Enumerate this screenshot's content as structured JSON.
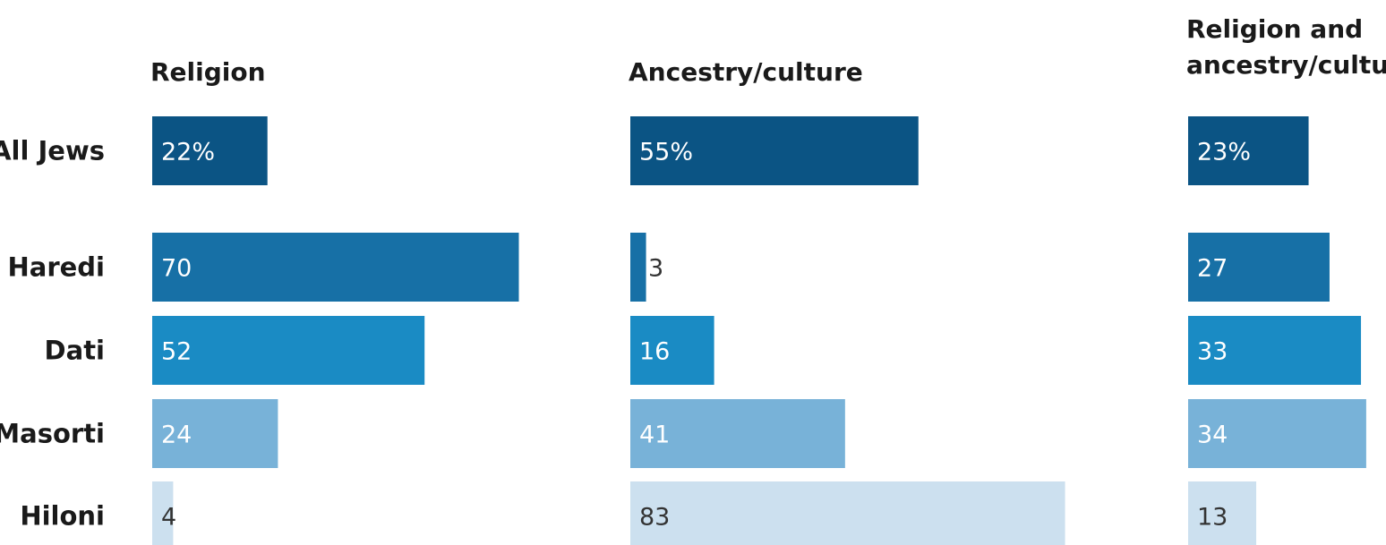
{
  "chart_data": {
    "type": "bar",
    "orientation": "horizontal",
    "layout": "small-multiples",
    "categories": [
      "All Jews",
      "Haredi",
      "Dati",
      "Masorti",
      "Hiloni"
    ],
    "series": [
      {
        "name": "Religion",
        "values": [
          22,
          70,
          52,
          24,
          4
        ]
      },
      {
        "name": "Ancestry/culture",
        "values": [
          55,
          3,
          16,
          41,
          83
        ]
      },
      {
        "name": "Religion and ancestry/culture",
        "values": [
          23,
          27,
          33,
          34,
          13
        ]
      }
    ],
    "value_labels": [
      [
        "22%",
        "70",
        "52",
        "24",
        "4"
      ],
      [
        "55%",
        "3",
        "16",
        "41",
        "83"
      ],
      [
        "23%",
        "27",
        "33",
        "34",
        "13"
      ]
    ],
    "panel_headers": [
      [
        "Religion"
      ],
      [
        "Ancestry/culture"
      ],
      [
        "Religion and",
        "ancestry/culture"
      ]
    ],
    "category_labels": [
      "All Jews",
      "Haredi",
      "Dati",
      "Masorti",
      "Hiloni"
    ],
    "unit": "%",
    "title": "",
    "xlabel": "",
    "ylabel": "",
    "xlim": [
      0,
      100
    ],
    "grid": false,
    "legend": "none",
    "colors": {
      "all_jews": "#0b5484",
      "haredi": "#1770a6",
      "dati": "#1a8bc4",
      "masorti": "#78b2d8",
      "hiloni": "#cce0ef",
      "label_on_dark": "#ffffff",
      "label_on_light": "#333333"
    }
  }
}
